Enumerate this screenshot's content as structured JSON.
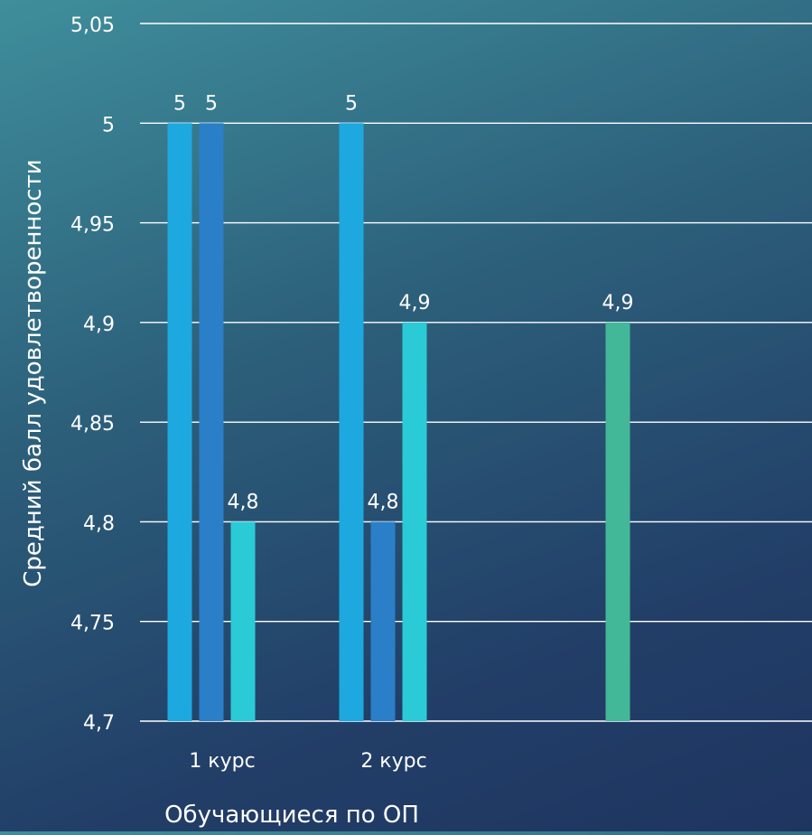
{
  "chart_data": {
    "type": "bar",
    "categories": [
      "1 курс",
      "2 курс",
      ""
    ],
    "series": [
      {
        "values": [
          5,
          5,
          null
        ],
        "color": "#1ea8e0"
      },
      {
        "values": [
          5,
          4.8,
          null
        ],
        "color": "#2a7fc8"
      },
      {
        "values": [
          4.8,
          4.9,
          null
        ],
        "color": "#2acbd6"
      },
      {
        "values": [
          null,
          null,
          4.9
        ],
        "color": "#43b898"
      }
    ],
    "data_labels": [
      "5",
      "5",
      "4,8",
      "5",
      "4,8",
      "4,9",
      "4,9"
    ],
    "xlabel": "Обучающиеся по ОП",
    "ylabel": "Средний балл  удовлетворенности",
    "ylim": [
      4.7,
      5.05
    ],
    "yticks": [
      4.7,
      4.75,
      4.8,
      4.85,
      4.9,
      4.95,
      5,
      5.05
    ],
    "ytick_labels": [
      "4,7",
      "4,75",
      "4,8",
      "4,85",
      "4,9",
      "4,95",
      "5",
      "5,05"
    ],
    "grid": true,
    "legend": "none"
  }
}
